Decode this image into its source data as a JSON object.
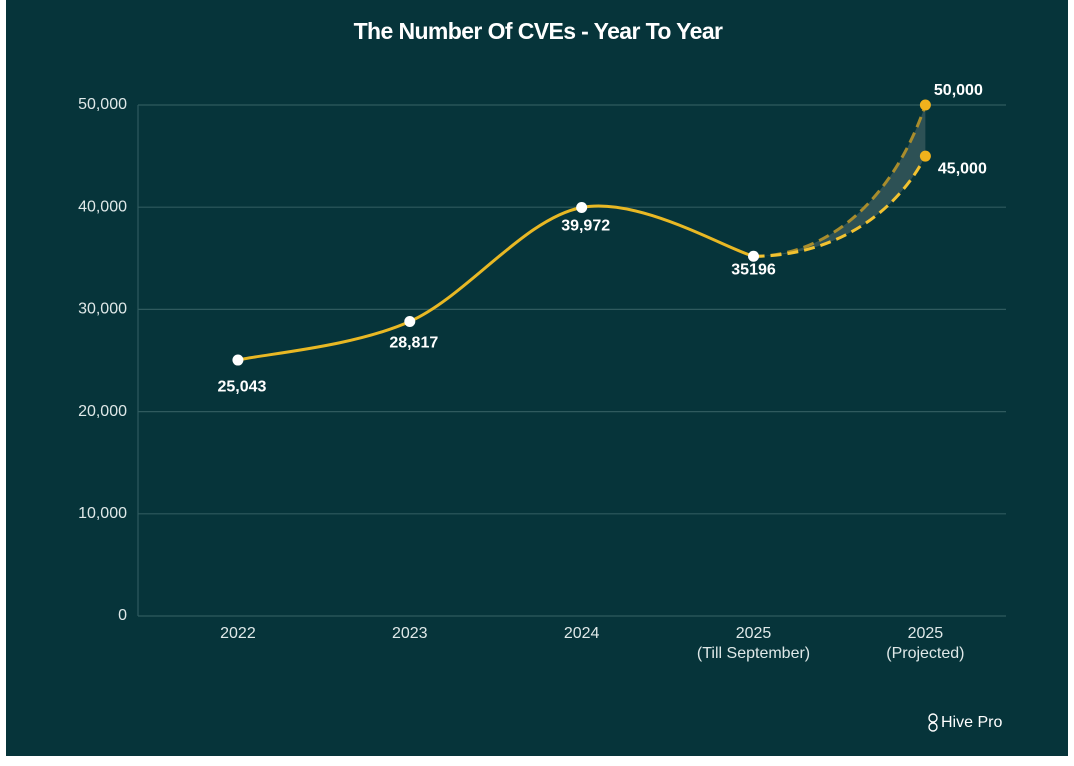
{
  "chart_data": {
    "type": "line",
    "title": "The Number Of CVEs - Year To Year",
    "categories": [
      [
        "2022"
      ],
      [
        "2023"
      ],
      [
        "2024"
      ],
      [
        "2025",
        "(Till September)"
      ],
      [
        "2025",
        "(Projected)"
      ]
    ],
    "series": [
      {
        "color": "#e8b824",
        "dashed": false,
        "marker_color": "#ffffff",
        "values": [
          25043,
          28817,
          39972,
          35196,
          null
        ],
        "value_labels": [
          "25,043",
          "28,817",
          "39,972",
          "35196",
          null
        ]
      },
      {
        "color": "#a88c2c",
        "dashed": true,
        "marker_color": "#f0b21c",
        "values": [
          null,
          null,
          null,
          35196,
          50000
        ],
        "value_labels": [
          null,
          null,
          null,
          null,
          "50,000"
        ]
      },
      {
        "color": "#f2c230",
        "dashed": true,
        "marker_color": "#f0b21c",
        "values": [
          null,
          null,
          null,
          35196,
          45000
        ],
        "value_labels": [
          null,
          null,
          null,
          null,
          "45,000"
        ]
      }
    ],
    "ylim": [
      0,
      50000
    ],
    "yticks": [
      0,
      {
        "value": 10000,
        "label": "10,000"
      },
      {
        "value": 20000,
        "label": "20,000"
      },
      {
        "value": 30000,
        "label": "30,000"
      },
      {
        "value": 40000,
        "label": "40,000"
      },
      {
        "value": 50000,
        "label": "50,000"
      }
    ],
    "grid": true,
    "band_fill": "#2d5155",
    "brand": "Hive Pro"
  }
}
